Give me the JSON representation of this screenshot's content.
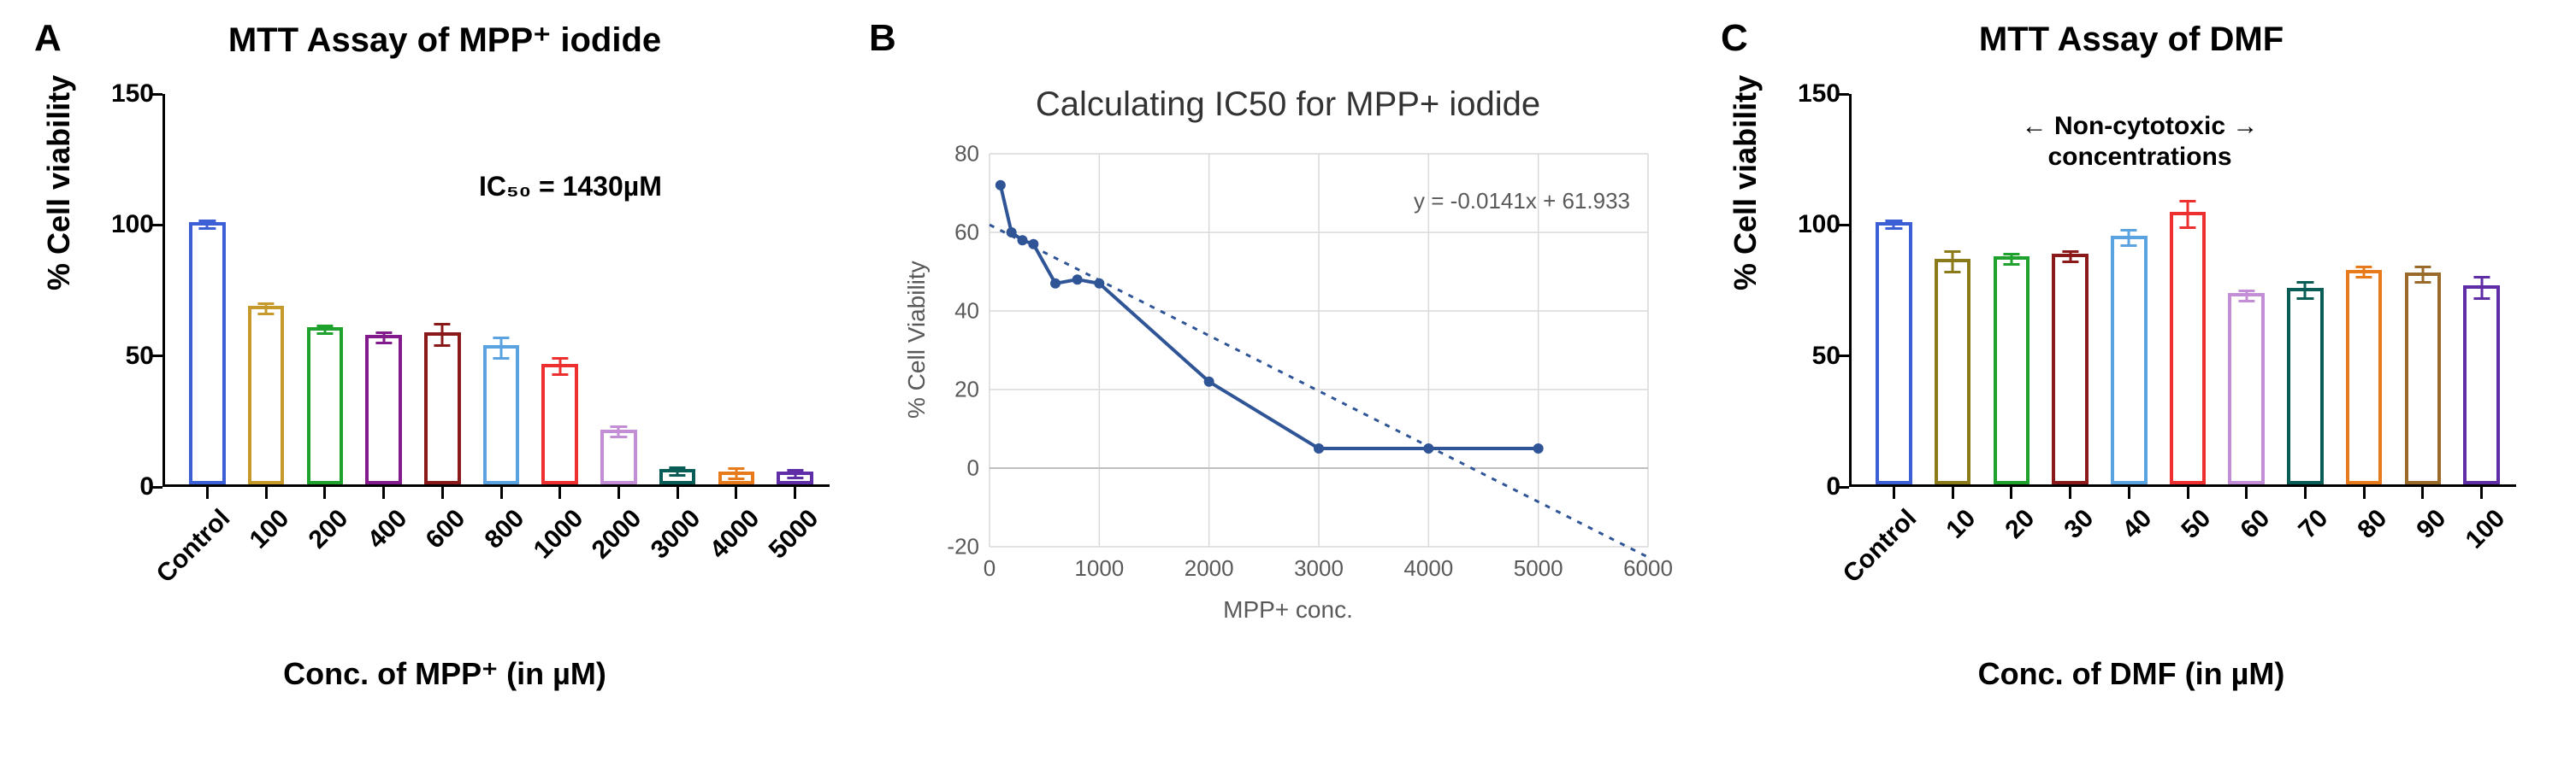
{
  "panelA": {
    "letter": "A",
    "title": "MTT Assay of MPP⁺ iodide",
    "ylabel": "% Cell viability",
    "xlabel": "Conc. of MPP⁺ (in µM)",
    "annotation": "IC₅₀ = 1430µM",
    "type": "bar",
    "ylim": [
      0,
      150
    ],
    "ytick_step": 50,
    "bar_width": 0.62,
    "bar_border_width": 4,
    "categories": [
      "Control",
      "100",
      "200",
      "400",
      "600",
      "800",
      "1000",
      "2000",
      "3000",
      "4000",
      "5000"
    ],
    "values": [
      100,
      68,
      60,
      57,
      58,
      53,
      46,
      21,
      6,
      5,
      5
    ],
    "errors": [
      1.5,
      2,
      1.5,
      2,
      4,
      4,
      3,
      2,
      1.5,
      2,
      1.5
    ],
    "colors": [
      "#3c5fd6",
      "#c69a2a",
      "#1fa12d",
      "#821a8c",
      "#8a1a1a",
      "#5aa3e0",
      "#ed2f2f",
      "#c38ed6",
      "#0a5c56",
      "#e77a1a",
      "#5f2da5"
    ],
    "fill_color": "#ffffff",
    "axis_color": "#000000",
    "tick_fontsize": 30,
    "title_fontsize": 40,
    "label_fontsize": 36
  },
  "panelB": {
    "letter": "B",
    "title": "Calculating IC50 for MPP+ iodide",
    "ylabel": "% Cell Viability",
    "xlabel": "MPP+ conc.",
    "equation": "y = -0.0141x + 61.933",
    "type": "scatter-line",
    "xlim": [
      0,
      6000
    ],
    "ylim": [
      -20,
      80
    ],
    "xticks": [
      0,
      1000,
      2000,
      3000,
      4000,
      5000,
      6000
    ],
    "yticks": [
      -20,
      0,
      20,
      40,
      60,
      80
    ],
    "grid_color": "#d9d9d9",
    "axis_color": "#bfbfbf",
    "tick_label_color": "#595959",
    "line_color": "#2f5597",
    "marker_color": "#2f5597",
    "marker_size": 12,
    "line_width": 4,
    "trend_dash": "6,8",
    "trend_color": "#2f5597",
    "data_x": [
      100,
      200,
      300,
      400,
      600,
      800,
      1000,
      2000,
      3000,
      4000,
      5000
    ],
    "data_y": [
      72,
      60,
      58,
      57,
      47,
      48,
      47,
      22,
      5,
      5,
      5
    ],
    "trend_slope": -0.0141,
    "trend_intercept": 61.933,
    "tick_fontsize": 26,
    "title_fontsize": 40,
    "label_fontsize": 28
  },
  "panelC": {
    "letter": "C",
    "title": "MTT Assay of DMF",
    "ylabel": "% Cell viability",
    "xlabel": "Conc. of DMF (in µM)",
    "annotation": "Non-cytotoxic\nconcentrations",
    "type": "bar",
    "ylim": [
      0,
      150
    ],
    "ytick_step": 50,
    "bar_width": 0.62,
    "bar_border_width": 4,
    "categories": [
      "Control",
      "10",
      "20",
      "30",
      "40",
      "50",
      "60",
      "70",
      "80",
      "90",
      "100"
    ],
    "values": [
      100,
      86,
      87,
      88,
      95,
      104,
      73,
      75,
      82,
      81,
      76
    ],
    "errors": [
      1.5,
      4,
      2,
      2,
      3,
      5,
      2,
      3,
      2,
      3,
      4
    ],
    "colors": [
      "#3c5fd6",
      "#8a7a1a",
      "#1fa12d",
      "#8a1a1a",
      "#5aa3e0",
      "#ed2f2f",
      "#c38ed6",
      "#0a5c56",
      "#e77a1a",
      "#9a6a2a",
      "#5f2da5"
    ],
    "fill_color": "#ffffff",
    "axis_color": "#000000",
    "tick_fontsize": 30,
    "title_fontsize": 40,
    "label_fontsize": 36,
    "arrow_range_text": "← Non-cytotoxic →\nconcentrations"
  }
}
